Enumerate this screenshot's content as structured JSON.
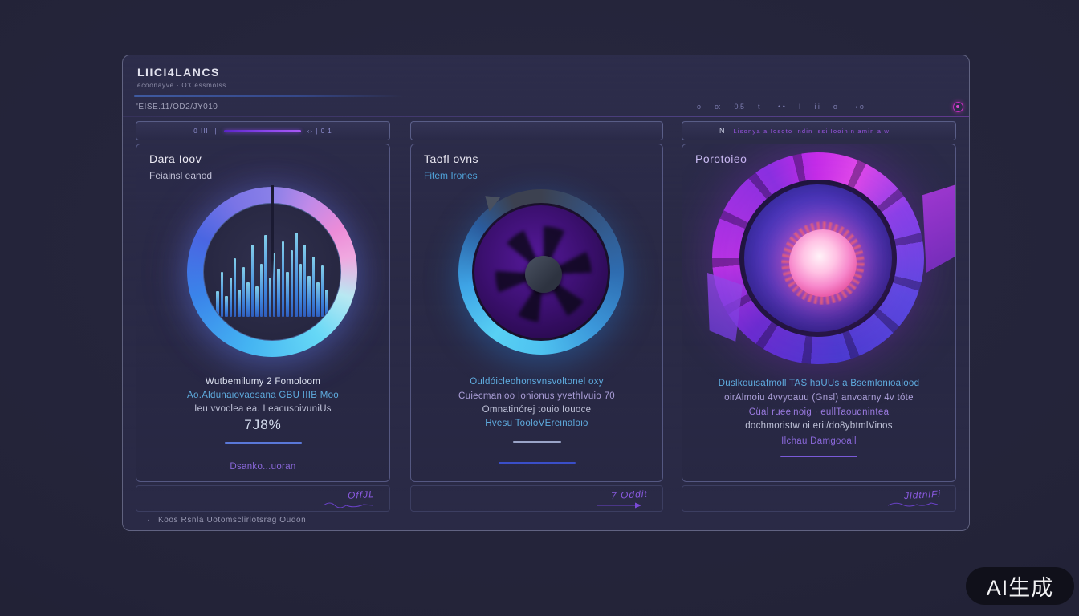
{
  "app": {
    "title": "LIICI4LANCS",
    "subtitle": "ecoonayve  ·  O'Cessmolss",
    "toolbar_left": "'EISE.11/OD2/JY010",
    "toolbar_glyphs": [
      "o",
      "o:",
      "0.5",
      "t ·",
      "• •",
      "I",
      "i  i",
      "o ·",
      "‹ o",
      "·"
    ],
    "footnote_bullet": "·",
    "footnote": "Koos   Rsnla Uotomsclirlotsrag      Oudon"
  },
  "cards": [
    {
      "topbar_left": "0 III",
      "topbar_tick": "|",
      "topbar_right": "‹›  |  0   1",
      "title": "Dara Ioov",
      "subtitle": "Feiainsl eanod",
      "lines": [
        {
          "text": "Wutbemilumy 2 Fomoloom"
        },
        {
          "text": "Ao.Aldunaiovaosana GBU IIIB Moo"
        },
        {
          "text": "Ieu vvoclea ea. LeacusoivuniUs"
        }
      ],
      "value": "7J8%",
      "link": "Dsanko...uoran",
      "signature": "OffJL",
      "viz": {
        "kind": "waveform-ring",
        "bars": [
          30,
          52,
          24,
          46,
          68,
          32,
          58,
          40,
          84,
          36,
          62,
          95,
          46,
          74,
          56,
          88,
          52,
          78,
          98,
          62,
          84,
          48,
          70,
          40,
          60,
          32
        ]
      }
    },
    {
      "title": "Taofl ovns",
      "subtitle": "Fitem Irones",
      "lines": [
        {
          "text": "Ouldóicleohonsvnsvoltonel oxy"
        },
        {
          "text": "Cuiecmanloo  Ionionus  yvethIvuio 70"
        },
        {
          "text": "Omnatinórej touio Iouoce"
        },
        {
          "text": "Hvesu  TooloVEreinaloio"
        }
      ],
      "link": "7 Oddit",
      "viz": {
        "kind": "turbine-ring"
      }
    },
    {
      "topbar_n": "N",
      "topbar_text": "Lisonya a Iosoto indin issi Iooinin  amin a w",
      "title": "Porotoieo",
      "lines": [
        {
          "text": "Duslkouisafmoll TAS haUUs a Bsemlonioalood"
        },
        {
          "text": "oirAlmoiu 4vvyoauu (Gnsl) anvoarny 4v tóte"
        },
        {
          "text": "Cüal rueeinoig   ·   eullTaoudnintea"
        },
        {
          "text": "dochmoristw oi eril/do8ybtmlVinos"
        },
        {
          "text": "Ilchau Damgooall"
        }
      ],
      "signature": "JldtnlFi",
      "viz": {
        "kind": "plasma-core"
      }
    }
  ],
  "watermark": "AI生成",
  "colors": {
    "background": "#222338",
    "panel": "#2a2a46",
    "accent_purple": "#8a46ec",
    "accent_magenta": "#c62cc0",
    "accent_blue": "#4fa2d8",
    "ring1_pink": "#ec8cd8",
    "ring1_cyan": "#66d8f6",
    "ring2_blue": "#4ec2f0",
    "ring3_magenta": "#c42ce8",
    "core_pink": "#f788cc"
  }
}
